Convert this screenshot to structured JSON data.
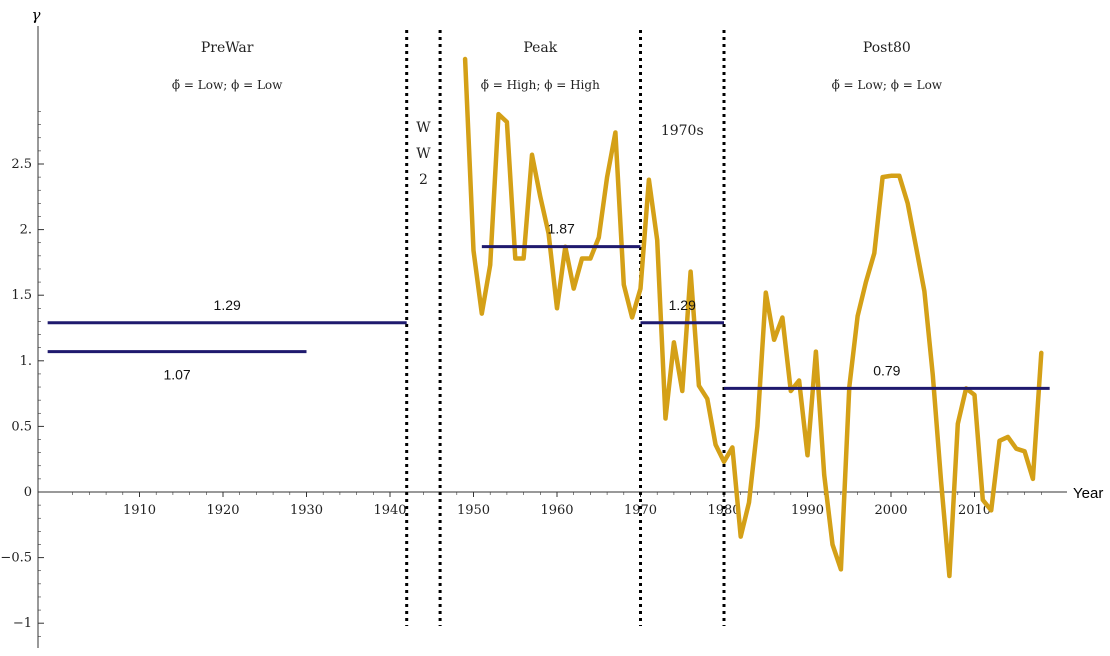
{
  "chart_data": {
    "type": "line",
    "title": "",
    "xlabel": "Year",
    "ylabel": "γ",
    "xlim": [
      1899,
      2019
    ],
    "ylim": [
      -1.2,
      3.3
    ],
    "x_ticks": [
      1910,
      1920,
      1930,
      1940,
      1950,
      1960,
      1970,
      1980,
      1990,
      2000,
      2010
    ],
    "x_tick_labels": [
      "1910",
      "1920",
      "1930",
      "1940",
      "1950",
      "1960",
      "1970",
      "1980",
      "1990",
      "2000",
      "2010"
    ],
    "y_ticks": [
      -1,
      -0.5,
      0,
      0.5,
      1,
      1.5,
      2,
      2.5
    ],
    "y_tick_labels": [
      "−1",
      "−0.5",
      "0",
      "0.5",
      "1.",
      "1.5",
      "2.",
      "2.5"
    ],
    "grid": false,
    "series": [
      {
        "color": "#D4A017",
        "x": [
          1949,
          1950,
          1951,
          1952,
          1953,
          1954,
          1955,
          1956,
          1957,
          1958,
          1959,
          1960,
          1961,
          1962,
          1963,
          1964,
          1965,
          1966,
          1967,
          1968,
          1969,
          1970,
          1971,
          1972,
          1973,
          1974,
          1975,
          1976,
          1977,
          1978,
          1979,
          1980,
          1981,
          1982,
          1983,
          1984,
          1985,
          1986,
          1987,
          1988,
          1989,
          1990,
          1991,
          1992,
          1993,
          1994,
          1995,
          1996,
          1997,
          1998,
          1999,
          2000,
          2001,
          2002,
          2003,
          2004,
          2005,
          2006,
          2007,
          2008,
          2009,
          2010,
          2011,
          2012,
          2013,
          2014,
          2015,
          2016,
          2017,
          2018
        ],
        "y": [
          3.3,
          1.84,
          1.36,
          1.73,
          2.88,
          2.82,
          1.78,
          1.78,
          2.57,
          2.25,
          1.97,
          1.4,
          1.87,
          1.55,
          1.78,
          1.78,
          1.94,
          2.4,
          2.74,
          1.58,
          1.33,
          1.55,
          2.38,
          1.92,
          0.56,
          1.14,
          0.77,
          1.68,
          0.81,
          0.71,
          0.36,
          0.23,
          0.34,
          -0.34,
          -0.08,
          0.5,
          1.52,
          1.16,
          1.33,
          0.77,
          0.85,
          0.28,
          1.07,
          0.13,
          -0.4,
          -0.59,
          0.8,
          1.34,
          1.6,
          1.82,
          2.4,
          2.41,
          2.41,
          2.2,
          1.87,
          1.53,
          0.89,
          0.08,
          -0.64,
          0.52,
          0.79,
          0.74,
          -0.06,
          -0.14,
          0.39,
          0.42,
          0.33,
          0.31,
          0.1,
          1.06
        ]
      }
    ],
    "mean_lines": [
      {
        "x_start": 1899,
        "x_end": 1942,
        "value": 1.29,
        "label": "1.29",
        "label_position": "above"
      },
      {
        "x_start": 1899,
        "x_end": 1930,
        "value": 1.07,
        "label": "1.07",
        "label_position": "below"
      },
      {
        "x_start": 1951,
        "x_end": 1970,
        "value": 1.87,
        "label": "1.87",
        "label_position": "above"
      },
      {
        "x_start": 1970,
        "x_end": 1980,
        "value": 1.29,
        "label": "1.29",
        "label_position": "above"
      },
      {
        "x_start": 1980,
        "x_end": 2019,
        "value": 0.79,
        "label": "0.79",
        "label_position": "above"
      }
    ],
    "mean_line_color": "#1F1A6E",
    "dividers": [
      1942,
      1946,
      1970,
      1980
    ],
    "eras": [
      {
        "name": "PreWar",
        "subtitle": "ϕ̃ = Low; ϕ = Low",
        "x_center": 1920.5
      },
      {
        "name": "W\nW\n2",
        "subtitle": "",
        "x_center": 1944,
        "vertical": true
      },
      {
        "name": "Peak",
        "subtitle": "ϕ̃ = High; ϕ = High",
        "x_center": 1958
      },
      {
        "name": "1970s",
        "subtitle": "",
        "x_center": 1975
      },
      {
        "name": "Post80",
        "subtitle": "ϕ̃ = Low; ϕ = Low",
        "x_center": 1999.5
      }
    ],
    "line_color": "#D4A017",
    "axis_color": "#333333",
    "annotations": []
  }
}
